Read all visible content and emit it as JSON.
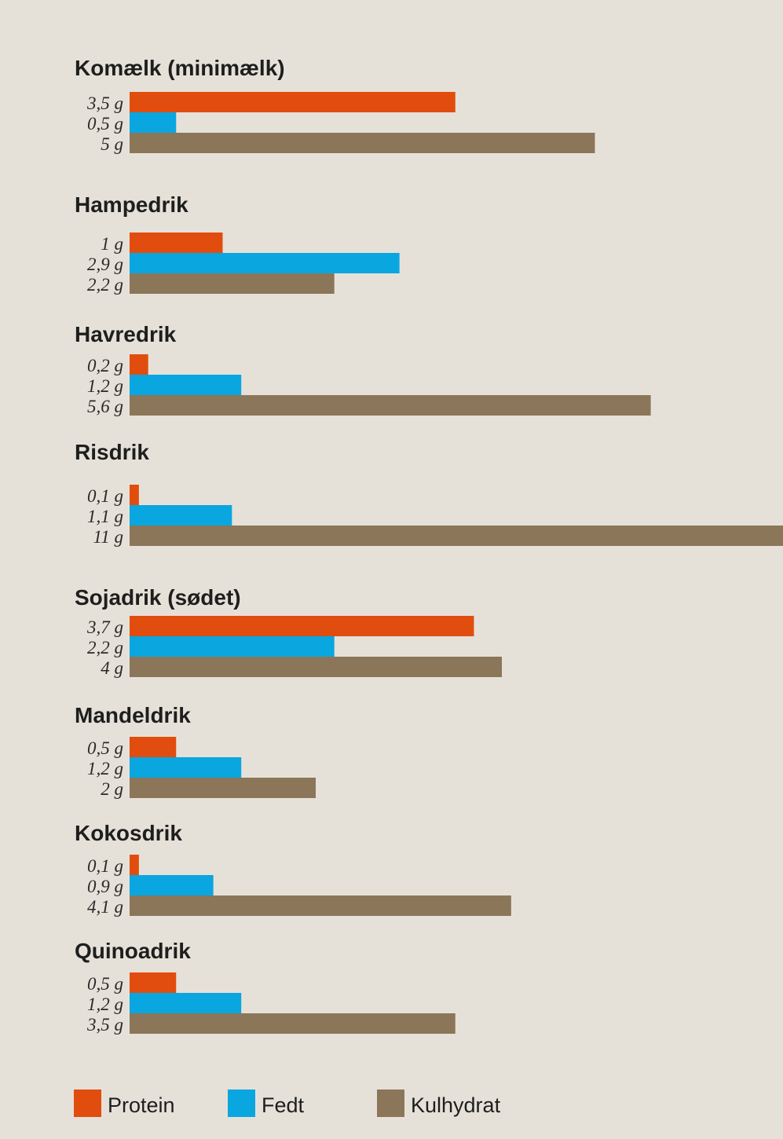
{
  "chart_data": {
    "type": "bar",
    "orientation": "horizontal",
    "unit": "g",
    "series": [
      {
        "name": "Protein",
        "color": "#e04d0e"
      },
      {
        "name": "Fedt",
        "color": "#0aa6e0"
      },
      {
        "name": "Kulhydrat",
        "color": "#8b7659"
      }
    ],
    "groups": [
      {
        "title": "Komælk (minimælk)",
        "values": [
          3.5,
          0.5,
          5
        ],
        "labels": [
          "3,5 g",
          "0,5 g",
          "5 g"
        ]
      },
      {
        "title": "Hampedrik",
        "values": [
          1,
          2.9,
          2.2
        ],
        "labels": [
          "1 g",
          "2,9 g",
          "2,2 g"
        ]
      },
      {
        "title": "Havredrik",
        "values": [
          0.2,
          1.2,
          5.6
        ],
        "labels": [
          "0,2 g",
          "1,2 g",
          "5,6 g"
        ]
      },
      {
        "title": "Risdrik",
        "values": [
          0.1,
          1.1,
          11
        ],
        "labels": [
          "0,1 g",
          "1,1 g",
          "11 g"
        ]
      },
      {
        "title": "Sojadrik (sødet)",
        "values": [
          3.7,
          2.2,
          4
        ],
        "labels": [
          "3,7 g",
          "2,2 g",
          "4 g"
        ]
      },
      {
        "title": "Mandeldrik",
        "values": [
          0.5,
          1.2,
          2
        ],
        "labels": [
          "0,5 g",
          "1,2 g",
          "2 g"
        ]
      },
      {
        "title": "Kokosdrik",
        "values": [
          0.1,
          0.9,
          4.1
        ],
        "labels": [
          "0,1 g",
          "0,9 g",
          "4,1 g"
        ]
      },
      {
        "title": "Quinoadrik",
        "values": [
          0.5,
          1.2,
          3.5
        ],
        "labels": [
          "0,5 g",
          "1,2 g",
          "3,5 g"
        ]
      }
    ],
    "legend": {
      "position": "bottom",
      "items": [
        "Protein",
        "Fedt",
        "Kulhydrat"
      ]
    }
  }
}
